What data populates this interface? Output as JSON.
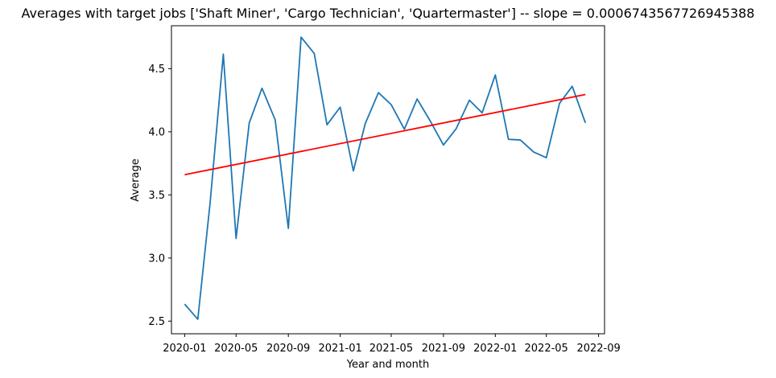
{
  "chart_data": {
    "type": "line",
    "title": "Averages with target jobs ['Shaft Miner', 'Cargo Technician', 'Quartermaster'] -- slope = 0.0006743567726945388",
    "xlabel": "Year and month",
    "ylabel": "Average",
    "x_tick_labels": [
      "2020-01",
      "2020-05",
      "2020-09",
      "2021-01",
      "2021-05",
      "2021-09",
      "2022-01",
      "2022-05",
      "2022-09"
    ],
    "y_tick_labels": [
      "2.5",
      "3.0",
      "3.5",
      "4.0",
      "4.5"
    ],
    "y_ticks": [
      2.5,
      3.0,
      3.5,
      4.0,
      4.5
    ],
    "ylim": [
      2.4,
      4.84
    ],
    "x": [
      "2020-01",
      "2020-02",
      "2020-03",
      "2020-04",
      "2020-05",
      "2020-06",
      "2020-07",
      "2020-08",
      "2020-09",
      "2020-10",
      "2020-11",
      "2020-12",
      "2021-01",
      "2021-02",
      "2021-03",
      "2021-04",
      "2021-05",
      "2021-06",
      "2021-07",
      "2021-08",
      "2021-09",
      "2021-10",
      "2021-11",
      "2021-12",
      "2022-01",
      "2022-02",
      "2022-03",
      "2022-04",
      "2022-05",
      "2022-06",
      "2022-07",
      "2022-08"
    ],
    "xlim": [
      "2019-12-01",
      "2022-09-15"
    ],
    "grid": false,
    "series": [
      {
        "name": "",
        "color": "#1f77b4",
        "values": [
          2.635,
          2.515,
          3.44,
          4.615,
          3.155,
          4.07,
          4.345,
          4.095,
          3.235,
          4.75,
          4.62,
          4.055,
          4.195,
          3.69,
          4.065,
          4.31,
          4.215,
          4.02,
          4.26,
          4.085,
          3.895,
          4.025,
          4.25,
          4.15,
          4.45,
          3.94,
          3.935,
          3.84,
          3.795,
          4.225,
          4.36,
          4.07
        ]
      },
      {
        "name": "",
        "color": "#ff0000",
        "x": [
          "2020-01",
          "2022-08"
        ],
        "values": [
          3.66,
          4.295
        ]
      }
    ]
  }
}
